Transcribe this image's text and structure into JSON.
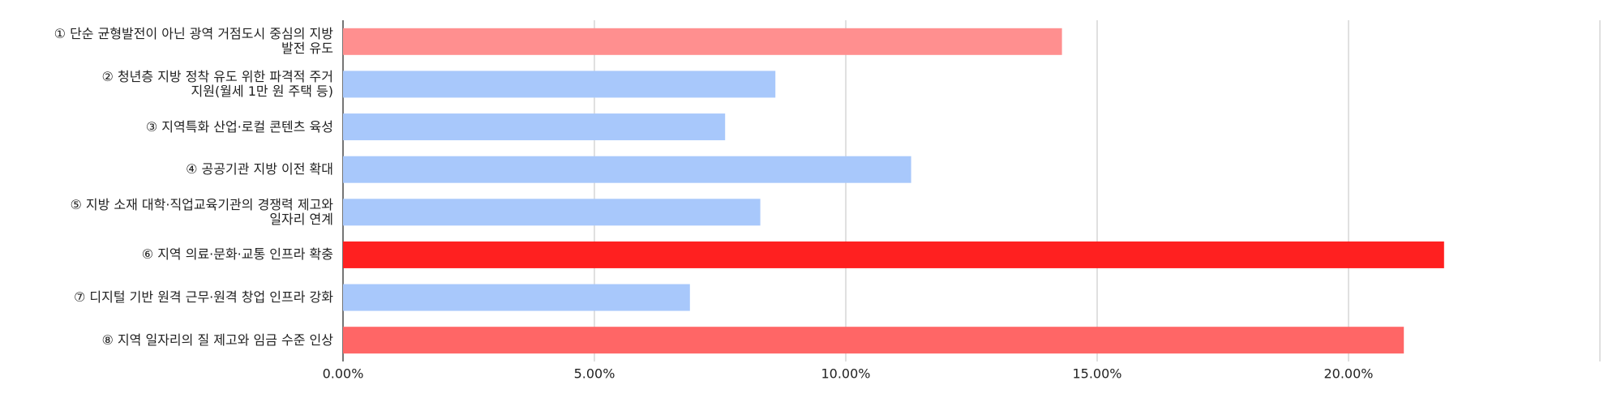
{
  "chart_data": {
    "type": "barh",
    "categories": [
      "① 단순 균형발전이 아닌 광역 거점도시 중심의 지방\n발전 유도",
      "② 청년층 지방 정착 유도 위한 파격적 주거\n지원(월세 1만 원 주택 등)",
      "③ 지역특화 산업·로컬 콘텐츠 육성",
      "④ 공공기관 지방 이전 확대",
      "⑤ 지방 소재 대학·직업교육기관의 경쟁력 제고와\n일자리 연계",
      "⑥ 지역 의료·문화·교통 인프라 확충",
      "⑦ 디지털 기반 원격 근무·원격 창업 인프라 강화",
      "⑧ 지역 일자리의 질 제고와 임금 수준 인상"
    ],
    "values": [
      14.3,
      8.6,
      7.6,
      11.3,
      8.3,
      21.9,
      6.9,
      21.1
    ],
    "colors": [
      "#ff8f8f",
      "#a8c8fb",
      "#a8c8fb",
      "#a8c8fb",
      "#a8c8fb",
      "#ff2020",
      "#a8c8fb",
      "#ff6666"
    ],
    "xlim": [
      0,
      25
    ],
    "xticks": [
      {
        "value": 0,
        "label": "0.00%"
      },
      {
        "value": 5,
        "label": "5.00%"
      },
      {
        "value": 10,
        "label": "10.00%"
      },
      {
        "value": 15,
        "label": "15.00%"
      },
      {
        "value": 20,
        "label": "20.00%"
      },
      {
        "value": 25,
        "label": ""
      }
    ],
    "grid": true
  }
}
